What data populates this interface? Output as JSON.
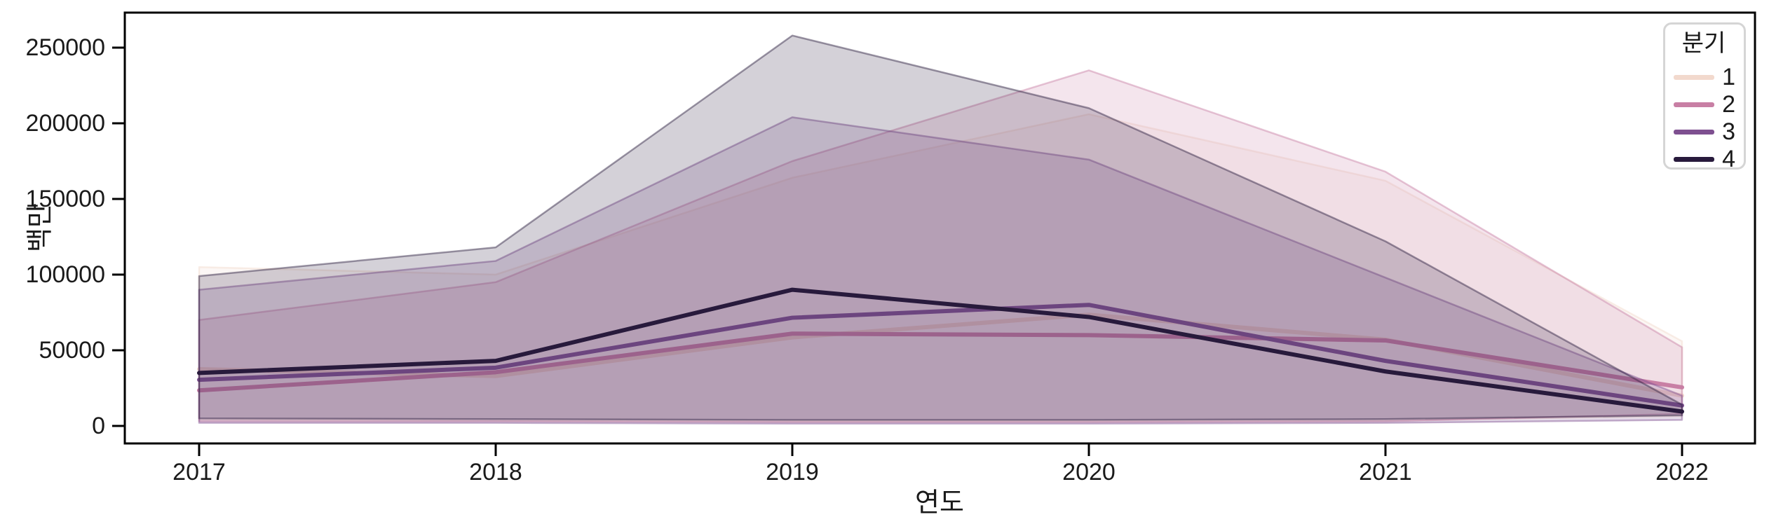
{
  "figure": {
    "background": "#ffffff",
    "spine_color": "#000000",
    "tick_color": "#1a1a1a"
  },
  "legend": {
    "title": "분기"
  },
  "chart_data": {
    "type": "line",
    "title": "",
    "xlabel": "연도",
    "ylabel": "백만",
    "legend_title": "분기",
    "legend_position": "upper right",
    "grid": false,
    "x": [
      2017,
      2018,
      2019,
      2020,
      2021,
      2022
    ],
    "xtick_labels": [
      "2017",
      "2018",
      "2019",
      "2020",
      "2021",
      "2022"
    ],
    "yticks": [
      0,
      50000,
      100000,
      150000,
      200000,
      250000
    ],
    "ytick_labels": [
      "0",
      "50000",
      "100000",
      "150000",
      "200000",
      "250000"
    ],
    "ylim": [
      -11500,
      273000
    ],
    "xlim_pad_fraction": 0.25,
    "band_style": {
      "fill_opacity": 0.2,
      "edge_opacity": 0.45,
      "edge_width": 2.5
    },
    "line_width": 6,
    "series": [
      {
        "name": "1",
        "color": "#f2d9cd",
        "values": [
          37500,
          33000,
          58500,
          73500,
          57000,
          20000
        ],
        "band_low": [
          4000,
          3500,
          3000,
          3000,
          3500,
          6500
        ],
        "band_high": [
          105000,
          100000,
          164000,
          206000,
          162000,
          56000
        ]
      },
      {
        "name": "2",
        "color": "#c87fa4",
        "values": [
          23500,
          35500,
          61000,
          60000,
          56500,
          25500
        ],
        "band_low": [
          3000,
          3000,
          2500,
          2500,
          3000,
          8000
        ],
        "band_high": [
          70000,
          95000,
          175000,
          235000,
          168000,
          52000
        ]
      },
      {
        "name": "3",
        "color": "#7e5090",
        "values": [
          30500,
          38500,
          71500,
          80000,
          43000,
          13500
        ],
        "band_low": [
          2000,
          2000,
          1500,
          1500,
          2000,
          4000
        ],
        "band_high": [
          90000,
          109000,
          204000,
          176000,
          98000,
          20000
        ]
      },
      {
        "name": "4",
        "color": "#281a3c",
        "values": [
          35000,
          43000,
          90000,
          72000,
          36000,
          9500
        ],
        "band_low": [
          5000,
          4500,
          4000,
          4000,
          4500,
          7000
        ],
        "band_high": [
          99000,
          118000,
          258000,
          210000,
          122000,
          14000
        ]
      }
    ]
  }
}
